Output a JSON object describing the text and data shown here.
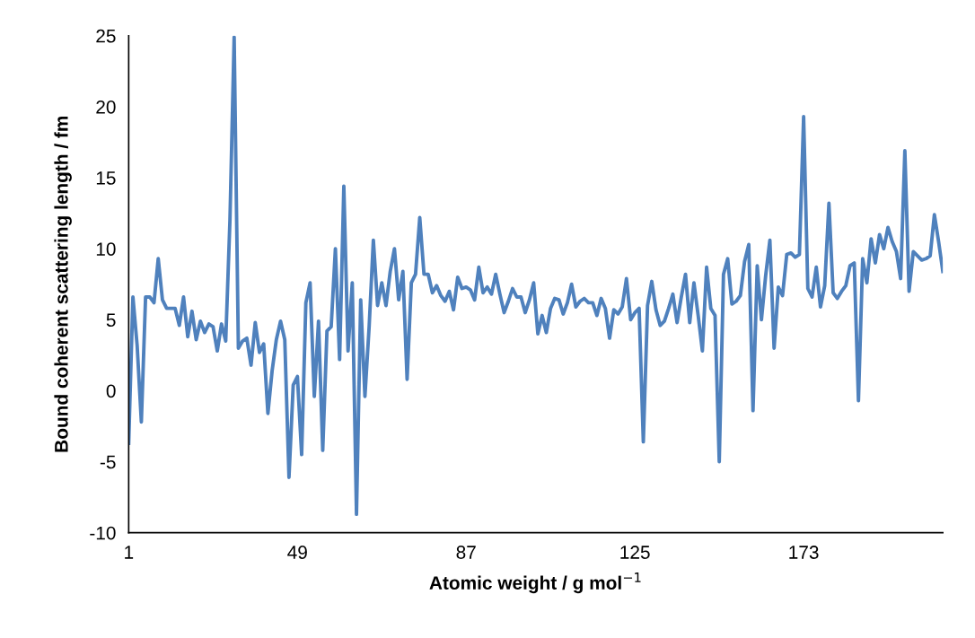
{
  "chart_data": {
    "type": "line",
    "xlabel": "Atomic weight / g mol$^{−1}$",
    "ylabel": "Bound coherent scattering length / fm",
    "categories": [
      "1",
      null,
      null,
      null,
      null,
      null,
      null,
      null,
      null,
      null,
      null,
      null,
      null,
      null,
      null,
      null,
      null,
      null,
      null,
      null,
      null,
      null,
      null,
      null,
      null,
      null,
      null,
      null,
      null,
      null,
      null,
      null,
      null,
      null,
      null,
      null,
      null,
      null,
      null,
      null,
      "49",
      null,
      null,
      null,
      null,
      null,
      null,
      null,
      null,
      null,
      null,
      null,
      null,
      null,
      null,
      null,
      null,
      null,
      null,
      null,
      null,
      null,
      null,
      null,
      null,
      null,
      null,
      null,
      null,
      null,
      null,
      null,
      null,
      null,
      null,
      null,
      null,
      null,
      null,
      null,
      "87",
      null,
      null,
      null,
      null,
      null,
      null,
      null,
      null,
      null,
      null,
      null,
      null,
      null,
      null,
      null,
      null,
      null,
      null,
      null,
      null,
      null,
      null,
      null,
      null,
      null,
      null,
      null,
      null,
      null,
      null,
      null,
      null,
      null,
      null,
      null,
      null,
      null,
      null,
      null,
      "125",
      null,
      null,
      null,
      null,
      null,
      null,
      null,
      null,
      null,
      null,
      null,
      null,
      null,
      null,
      null,
      null,
      null,
      null,
      null,
      null,
      null,
      null,
      null,
      null,
      null,
      null,
      null,
      null,
      null,
      null,
      null,
      null,
      null,
      null,
      null,
      null,
      null,
      null,
      null,
      "173",
      null,
      null,
      null,
      null,
      null,
      null,
      null,
      null,
      null,
      null,
      null,
      null,
      null,
      null,
      null,
      null,
      null,
      null,
      null,
      null,
      null,
      null,
      null,
      null,
      null,
      null,
      null,
      null,
      null,
      null,
      null,
      null,
      null
    ],
    "series": [
      {
        "color": "#4f81bd",
        "values": [
          -3.7,
          6.6,
          3.2,
          -2.2,
          6.6,
          6.6,
          6.2,
          9.3,
          6.4,
          5.8,
          5.8,
          5.8,
          4.6,
          6.6,
          3.8,
          5.6,
          3.6,
          4.9,
          4.1,
          4.7,
          4.5,
          2.8,
          4.7,
          3.5,
          12.0,
          24.9,
          3.0,
          3.5,
          3.7,
          1.8,
          4.8,
          2.7,
          3.3,
          -1.6,
          1.4,
          3.6,
          4.9,
          3.6,
          -6.1,
          0.4,
          1.0,
          -4.5,
          6.2,
          7.6,
          -0.4,
          4.9,
          -4.2,
          4.2,
          4.5,
          10.0,
          2.2,
          14.4,
          2.8,
          7.6,
          -8.7,
          6.4,
          -0.4,
          4.5,
          10.6,
          6.0,
          7.6,
          6.0,
          8.4,
          10.0,
          6.4,
          8.4,
          0.8,
          7.6,
          8.2,
          12.2,
          8.2,
          8.2,
          6.9,
          7.4,
          6.7,
          6.3,
          7.0,
          5.7,
          8.0,
          7.2,
          7.3,
          7.1,
          6.4,
          8.7,
          6.9,
          7.3,
          6.8,
          8.2,
          6.8,
          5.5,
          6.3,
          7.2,
          6.6,
          6.6,
          5.5,
          6.4,
          7.6,
          4.0,
          5.3,
          4.1,
          5.8,
          6.5,
          6.4,
          5.4,
          6.2,
          7.5,
          5.9,
          6.3,
          6.5,
          6.2,
          6.2,
          5.3,
          6.5,
          5.8,
          3.7,
          5.7,
          5.4,
          5.9,
          7.9,
          5.0,
          5.5,
          5.8,
          -3.6,
          6.0,
          7.7,
          5.7,
          4.6,
          4.9,
          5.8,
          6.8,
          4.8,
          6.6,
          8.2,
          4.8,
          7.6,
          5.3,
          2.8,
          8.7,
          5.8,
          5.3,
          -5.0,
          8.2,
          9.3,
          6.1,
          6.3,
          6.7,
          9.1,
          10.3,
          -1.4,
          8.8,
          5.0,
          8.1,
          10.6,
          3.0,
          7.3,
          6.7,
          9.6,
          9.7,
          9.4,
          9.6,
          19.3,
          7.2,
          6.6,
          8.7,
          5.9,
          7.4,
          13.2,
          6.9,
          6.5,
          7.0,
          7.4,
          8.8,
          9.0,
          -0.7,
          9.3,
          7.6,
          10.7,
          9.0,
          11.0,
          10.0,
          11.5,
          10.5,
          9.8,
          7.9,
          16.9,
          7.0,
          9.8,
          9.5,
          9.2,
          9.3,
          9.5,
          12.4,
          10.5,
          8.4
        ]
      }
    ],
    "ylim": [
      -10,
      25
    ],
    "yticks": [
      -10,
      -5,
      0,
      5,
      10,
      15,
      20,
      25
    ],
    "grid": false,
    "marker": "none",
    "line_style": "solid"
  }
}
